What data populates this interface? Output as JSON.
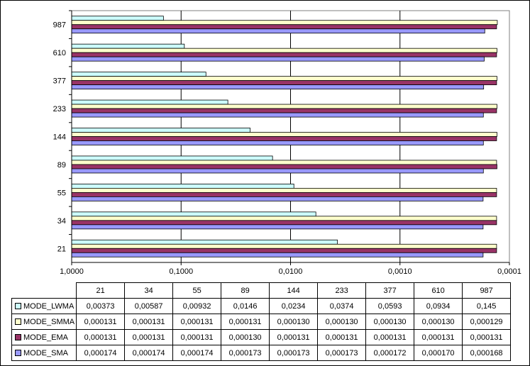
{
  "chart_data": {
    "type": "bar",
    "orientation": "horizontal",
    "categories": [
      "21",
      "34",
      "55",
      "89",
      "144",
      "233",
      "377",
      "610",
      "987"
    ],
    "x_axis": {
      "scale": "log",
      "reversed": true,
      "range": [
        1.0,
        0.0001
      ],
      "tick_values": [
        1,
        0.1,
        0.01,
        0.001,
        0.0001
      ],
      "tick_labels": [
        "1,0000",
        "0,1000",
        "0,0100",
        "0,0010",
        "0,0001"
      ]
    },
    "gridlines": {
      "x_major": true
    },
    "legend": "table-below",
    "series": [
      {
        "name": "MODE_LWMA",
        "color": "#CCFFFF",
        "values": [
          0.00373,
          0.00587,
          0.00932,
          0.0146,
          0.0234,
          0.0374,
          0.0593,
          0.0934,
          0.145
        ],
        "labels": [
          "0,00373",
          "0,00587",
          "0,00932",
          "0,0146",
          "0,0234",
          "0,0374",
          "0,0593",
          "0,0934",
          "0,145"
        ]
      },
      {
        "name": "MODE_SMMA",
        "color": "#FFFFCC",
        "values": [
          0.000131,
          0.000131,
          0.000131,
          0.000131,
          0.00013,
          0.00013,
          0.00013,
          0.00013,
          0.000129
        ],
        "labels": [
          "0,000131",
          "0,000131",
          "0,000131",
          "0,000131",
          "0,000130",
          "0,000130",
          "0,000130",
          "0,000130",
          "0,000129"
        ]
      },
      {
        "name": "MODE_EMA",
        "color": "#993366",
        "values": [
          0.000131,
          0.000131,
          0.000131,
          0.00013,
          0.000131,
          0.000131,
          0.000131,
          0.000131,
          0.000131
        ],
        "labels": [
          "0,000131",
          "0,000131",
          "0,000131",
          "0,000130",
          "0,000131",
          "0,000131",
          "0,000131",
          "0,000131",
          "0,000131"
        ]
      },
      {
        "name": "MODE_SMA",
        "color": "#9999FF",
        "values": [
          0.000174,
          0.000174,
          0.000174,
          0.000173,
          0.000173,
          0.000173,
          0.000172,
          0.00017,
          0.000168
        ],
        "labels": [
          "0,000174",
          "0,000174",
          "0,000174",
          "0,000173",
          "0,000173",
          "0,000173",
          "0,000172",
          "0,000170",
          "0,000168"
        ]
      }
    ]
  }
}
